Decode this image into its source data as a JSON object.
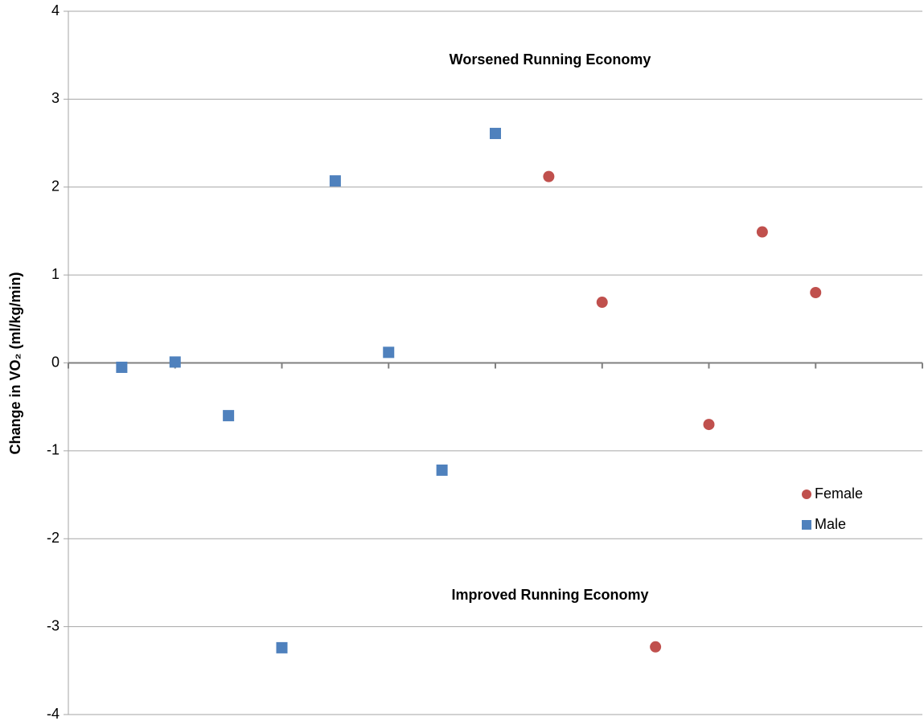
{
  "chart_data": {
    "type": "scatter",
    "y_label": "Change in VO₂ (ml/kg/min)",
    "annotations": [
      "Worsened Running Economy",
      "Improved Running Economy"
    ],
    "series": [
      {
        "name": "Female",
        "color": "#c0504d",
        "marker": "circle",
        "x": [
          9,
          10,
          11,
          12,
          13,
          14
        ],
        "values": [
          2.12,
          0.69,
          -3.23,
          -0.7,
          1.49,
          0.8
        ]
      },
      {
        "name": "Male",
        "color": "#4f81bd",
        "marker": "square",
        "x": [
          1,
          2,
          3,
          4,
          5,
          6,
          7,
          8
        ],
        "values": [
          -0.05,
          0.01,
          -0.6,
          -3.24,
          2.07,
          0.12,
          -1.22,
          2.61
        ]
      }
    ],
    "xlim": [
      0,
      16
    ],
    "xticks": [
      0,
      2,
      4,
      6,
      8,
      10,
      12,
      14,
      16
    ],
    "ylim": [
      -4,
      4
    ],
    "yticks": [
      -4,
      -3,
      -2,
      -1,
      0,
      1,
      2,
      3,
      4
    ],
    "grid": true,
    "legend": "right"
  }
}
